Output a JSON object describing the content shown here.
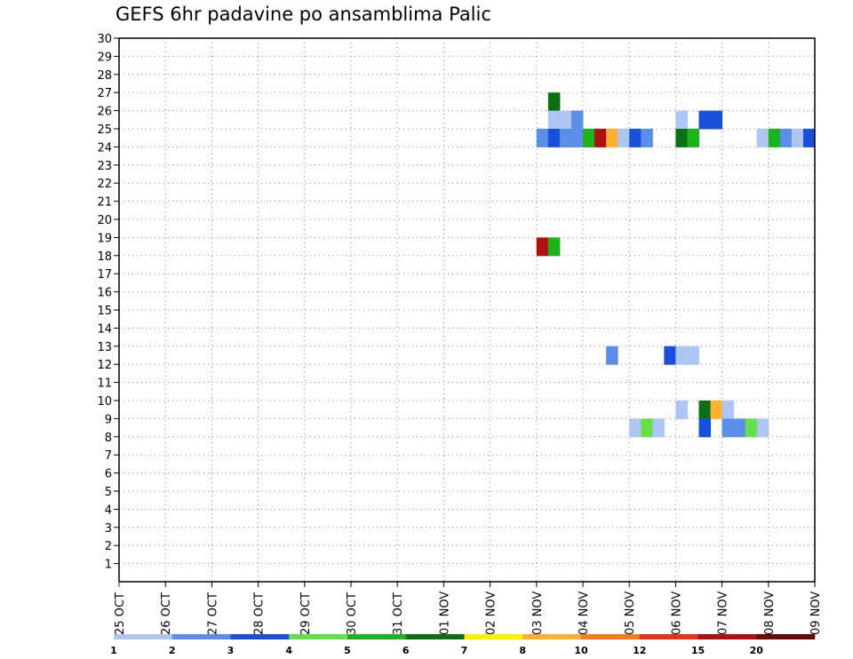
{
  "title": "GEFS 6hr padavine po ansamblima Palic",
  "chart_data": {
    "type": "heatmap",
    "title": "GEFS 6hr padavine po ansamblima Palic",
    "xlabel": "",
    "ylabel": "",
    "x_tick_labels": [
      "25 OCT",
      "26 OCT",
      "27 OCT",
      "28 OCT",
      "29 OCT",
      "30 OCT",
      "31 OCT",
      "01 NOV",
      "02 NOV",
      "03 NOV",
      "04 NOV",
      "05 NOV",
      "06 NOV",
      "07 NOV",
      "08 NOV",
      "09 NOV"
    ],
    "y_ticks": [
      1,
      2,
      3,
      4,
      5,
      6,
      7,
      8,
      9,
      10,
      11,
      12,
      13,
      14,
      15,
      16,
      17,
      18,
      19,
      20,
      21,
      22,
      23,
      24,
      25,
      26,
      27,
      28,
      29,
      30
    ],
    "grid": true,
    "legend": {
      "placement": "bottom",
      "colors": [
        "#aec6f4",
        "#5a8ee8",
        "#1a4fdc",
        "#66e04a",
        "#1bb21b",
        "#0a7012",
        "#fff200",
        "#ffb030",
        "#ff7a1a",
        "#e8321e",
        "#b01010",
        "#6e0808"
      ],
      "labels": [
        "1",
        "2",
        "3",
        "4",
        "5",
        "6",
        "7",
        "8",
        "10",
        "12",
        "15",
        "20"
      ]
    },
    "cells": [
      {
        "day": 9.25,
        "member": 27,
        "color": "#0a7012"
      },
      {
        "day": 9.25,
        "member": 26,
        "color": "#aec6f4"
      },
      {
        "day": 9.5,
        "member": 26,
        "color": "#aec6f4"
      },
      {
        "day": 9.75,
        "member": 26,
        "color": "#5a8ee8"
      },
      {
        "day": 12.0,
        "member": 26,
        "color": "#aec6f4"
      },
      {
        "day": 12.5,
        "member": 26,
        "color": "#1a4fdc"
      },
      {
        "day": 12.75,
        "member": 26,
        "color": "#1a4fdc"
      },
      {
        "day": 9.0,
        "member": 25,
        "color": "#5a8ee8"
      },
      {
        "day": 9.25,
        "member": 25,
        "color": "#1a4fdc"
      },
      {
        "day": 9.5,
        "member": 25,
        "color": "#5a8ee8"
      },
      {
        "day": 9.75,
        "member": 25,
        "color": "#5a8ee8"
      },
      {
        "day": 10.0,
        "member": 25,
        "color": "#1bb21b"
      },
      {
        "day": 10.25,
        "member": 25,
        "color": "#b01010"
      },
      {
        "day": 10.5,
        "member": 25,
        "color": "#ffb030"
      },
      {
        "day": 10.75,
        "member": 25,
        "color": "#aec6f4"
      },
      {
        "day": 11.0,
        "member": 25,
        "color": "#1a4fdc"
      },
      {
        "day": 11.25,
        "member": 25,
        "color": "#5a8ee8"
      },
      {
        "day": 12.0,
        "member": 25,
        "color": "#0a7012"
      },
      {
        "day": 12.25,
        "member": 25,
        "color": "#1bb21b"
      },
      {
        "day": 13.75,
        "member": 25,
        "color": "#aec6f4"
      },
      {
        "day": 14.0,
        "member": 25,
        "color": "#1bb21b"
      },
      {
        "day": 14.25,
        "member": 25,
        "color": "#5a8ee8"
      },
      {
        "day": 14.5,
        "member": 25,
        "color": "#aec6f4"
      },
      {
        "day": 14.75,
        "member": 25,
        "color": "#1a4fdc"
      },
      {
        "day": 9.0,
        "member": 19,
        "color": "#b01010"
      },
      {
        "day": 9.25,
        "member": 19,
        "color": "#1bb21b"
      },
      {
        "day": 10.5,
        "member": 13,
        "color": "#5a8ee8"
      },
      {
        "day": 11.75,
        "member": 13,
        "color": "#1a4fdc"
      },
      {
        "day": 12.0,
        "member": 13,
        "color": "#aec6f4"
      },
      {
        "day": 12.25,
        "member": 13,
        "color": "#aec6f4"
      },
      {
        "day": 12.0,
        "member": 10,
        "color": "#aec6f4"
      },
      {
        "day": 12.5,
        "member": 10,
        "color": "#0a7012"
      },
      {
        "day": 12.75,
        "member": 10,
        "color": "#ffb030"
      },
      {
        "day": 13.0,
        "member": 10,
        "color": "#aec6f4"
      },
      {
        "day": 11.0,
        "member": 9,
        "color": "#aec6f4"
      },
      {
        "day": 11.25,
        "member": 9,
        "color": "#66e04a"
      },
      {
        "day": 11.5,
        "member": 9,
        "color": "#aec6f4"
      },
      {
        "day": 12.5,
        "member": 9,
        "color": "#1a4fdc"
      },
      {
        "day": 13.0,
        "member": 9,
        "color": "#5a8ee8"
      },
      {
        "day": 13.25,
        "member": 9,
        "color": "#5a8ee8"
      },
      {
        "day": 13.5,
        "member": 9,
        "color": "#66e04a"
      },
      {
        "day": 13.75,
        "member": 9,
        "color": "#aec6f4"
      }
    ]
  }
}
